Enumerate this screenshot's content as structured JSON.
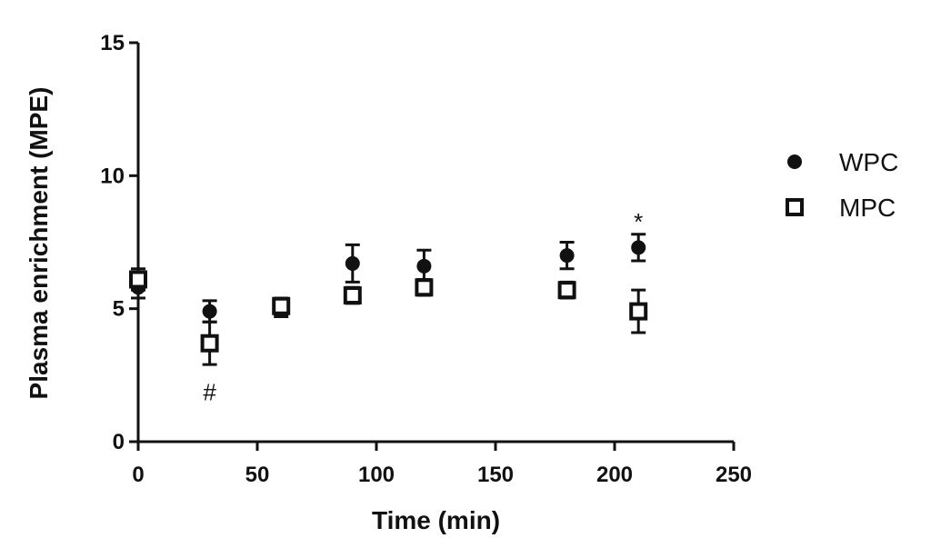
{
  "chart_data": {
    "type": "scatter",
    "xlabel": "Time (min)",
    "ylabel": "Plasma enrichment (MPE)",
    "xlim": [
      0,
      250
    ],
    "ylim": [
      0,
      15
    ],
    "xticks": [
      0,
      50,
      100,
      150,
      200,
      250
    ],
    "yticks": [
      0,
      5,
      10,
      15
    ],
    "grid": false,
    "legend": "right",
    "series": [
      {
        "name": "WPC",
        "marker": "filled-circle",
        "color": "#111111",
        "points": [
          {
            "x": 0,
            "y": 5.8,
            "err": 0.4
          },
          {
            "x": 30,
            "y": 4.9,
            "err": 0.4
          },
          {
            "x": 60,
            "y": 5.0,
            "err": 0.3
          },
          {
            "x": 90,
            "y": 6.7,
            "err": 0.7
          },
          {
            "x": 120,
            "y": 6.6,
            "err": 0.6
          },
          {
            "x": 180,
            "y": 7.0,
            "err": 0.5
          },
          {
            "x": 210,
            "y": 7.3,
            "err": 0.5
          }
        ]
      },
      {
        "name": "MPC",
        "marker": "open-square",
        "color": "#111111",
        "points": [
          {
            "x": 0,
            "y": 6.1,
            "err": 0.4
          },
          {
            "x": 30,
            "y": 3.7,
            "err": 0.8
          },
          {
            "x": 60,
            "y": 5.1,
            "err": 0.3
          },
          {
            "x": 90,
            "y": 5.5,
            "err": 0.3
          },
          {
            "x": 120,
            "y": 5.8,
            "err": 0.3
          },
          {
            "x": 180,
            "y": 5.7,
            "err": 0.3
          },
          {
            "x": 210,
            "y": 4.9,
            "err": 0.8
          }
        ]
      }
    ],
    "annotations": [
      {
        "text": "#",
        "x": 30,
        "y": 1.9
      },
      {
        "text": "*",
        "x": 210,
        "y": 8.3
      }
    ]
  }
}
